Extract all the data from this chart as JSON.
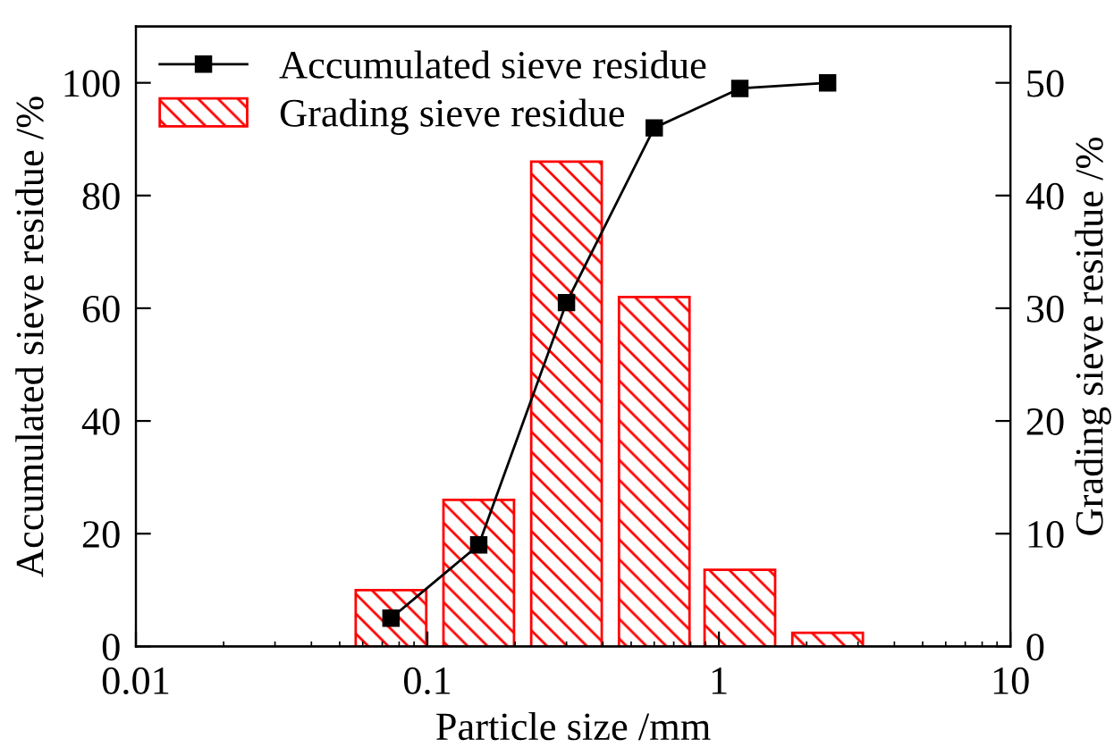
{
  "chart_data": {
    "type": "line",
    "xlabel": "Particle size /mm",
    "ylabel": "Accumulated sieve residue /%",
    "y2label": "Grading sieve residue /%",
    "x": [
      0.075,
      0.15,
      0.3,
      0.6,
      1.18,
      2.36
    ],
    "series": [
      {
        "name": "Accumulated sieve residue",
        "color": "#000000",
        "marker": "square",
        "values": [
          5,
          18,
          61,
          92,
          99,
          100
        ]
      },
      {
        "name": "Grading sieve residue",
        "type": "bar",
        "axis": "y2",
        "color": "#ff0000",
        "values": [
          5,
          13,
          43,
          31,
          6.8,
          1.2
        ]
      }
    ],
    "log": "x",
    "xlim": [
      0.01,
      10
    ],
    "xticks": [
      0.01,
      0.1,
      1,
      10
    ],
    "ylim": [
      0,
      110
    ],
    "yticks": [
      0,
      20,
      40,
      60,
      80,
      100
    ],
    "y2lim": [
      0,
      55
    ],
    "y2ticks": [
      0,
      10,
      20,
      30,
      40,
      50
    ],
    "legend": "top left",
    "grid": false
  }
}
